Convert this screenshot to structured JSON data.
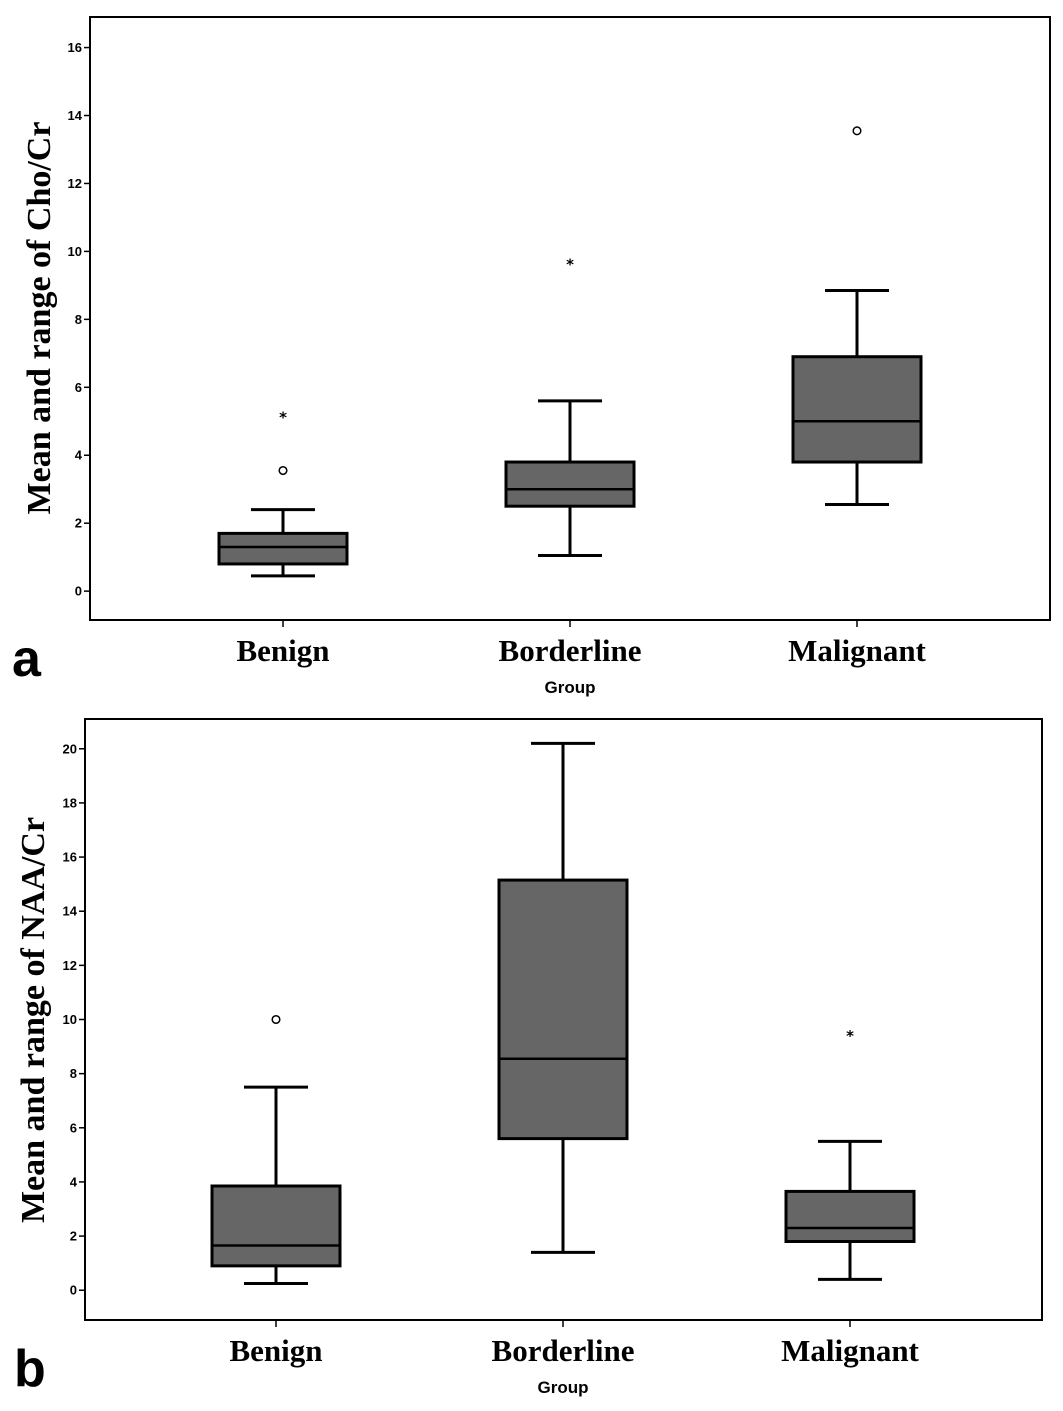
{
  "chart_data": [
    {
      "type": "boxplot",
      "panel_label": "a",
      "ylabel": "Mean and range of Cho/Cr",
      "xlabel": "Group",
      "categories": [
        "Benign",
        "Borderline",
        "Malignant"
      ],
      "ylim": [
        -0.85,
        16.9
      ],
      "yticks": [
        0,
        2,
        4,
        6,
        8,
        10,
        12,
        14,
        16
      ],
      "box_color": "#666666",
      "boxes": [
        {
          "min": 0.45,
          "q1": 0.8,
          "median": 1.3,
          "q3": 1.7,
          "max": 2.4,
          "outliers": [
            {
              "value": 3.55,
              "marker": "circle"
            },
            {
              "value": 5.2,
              "marker": "star"
            }
          ]
        },
        {
          "min": 1.05,
          "q1": 2.5,
          "median": 3.0,
          "q3": 3.8,
          "max": 5.6,
          "outliers": [
            {
              "value": 9.7,
              "marker": "star"
            }
          ]
        },
        {
          "min": 2.55,
          "q1": 3.8,
          "median": 5.0,
          "q3": 6.9,
          "max": 8.85,
          "outliers": [
            {
              "value": 13.55,
              "marker": "circle"
            }
          ]
        }
      ]
    },
    {
      "type": "boxplot",
      "panel_label": "b",
      "ylabel": "Mean and range of NAA/Cr",
      "xlabel": "Group",
      "categories": [
        "Benign",
        "Borderline",
        "Malignant"
      ],
      "ylim": [
        -1.1,
        21.1
      ],
      "yticks": [
        0,
        2,
        4,
        6,
        8,
        10,
        12,
        14,
        16,
        18,
        20
      ],
      "box_color": "#666666",
      "boxes": [
        {
          "min": 0.25,
          "q1": 0.9,
          "median": 1.65,
          "q3": 3.85,
          "max": 7.5,
          "outliers": [
            {
              "value": 10.0,
              "marker": "circle"
            }
          ]
        },
        {
          "min": 1.4,
          "q1": 5.6,
          "median": 8.55,
          "q3": 15.15,
          "max": 20.2,
          "outliers": []
        },
        {
          "min": 0.4,
          "q1": 1.8,
          "median": 2.3,
          "q3": 3.65,
          "max": 5.5,
          "outliers": [
            {
              "value": 9.5,
              "marker": "star"
            }
          ]
        }
      ]
    }
  ]
}
